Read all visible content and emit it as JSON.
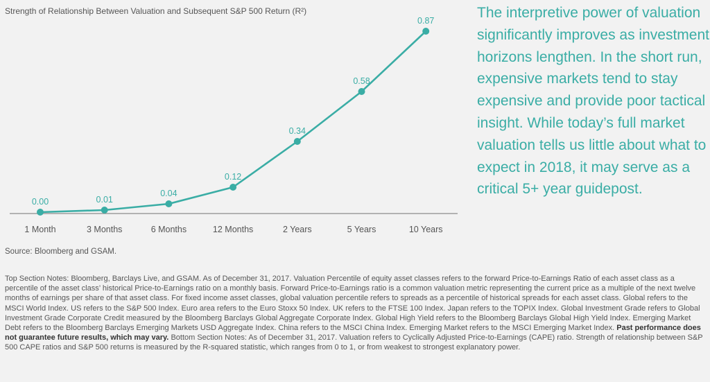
{
  "chart_data": {
    "type": "line",
    "title": "Strength of Relationship Between Valuation and Subsequent S&P 500 Return (R²)",
    "categories": [
      "1 Month",
      "3 Months",
      "6 Months",
      "12 Months",
      "2 Years",
      "5 Years",
      "10 Years"
    ],
    "series": [
      {
        "name": "R-squared",
        "values": [
          0.0,
          0.01,
          0.04,
          0.12,
          0.34,
          0.58,
          0.87
        ]
      }
    ],
    "data_labels": [
      "0.00",
      "0.01",
      "0.04",
      "0.12",
      "0.34",
      "0.58",
      "0.87"
    ],
    "ylim": [
      0,
      0.87
    ],
    "xlabel": "",
    "ylabel": "",
    "grid": false,
    "legend": "none",
    "color": "#3aada5",
    "axis_color": "#8c8c8c"
  },
  "callout": {
    "text": "The interpretive power of valuation significantly improves as investment horizons lengthen. In the short run, expensive markets tend to stay expensive and provide poor tactical insight. While today’s full market valuation tells us little about what to expect in 2018, it may serve as a critical 5+ year guidepost."
  },
  "source": "Source: Bloomberg and GSAM.",
  "notes": {
    "top_a": "Top Section Notes: Bloomberg, Barclays Live, and GSAM. As of December 31, 2017. Valuation Percentile of equity asset classes refers to the forward Price-to-Earnings Ratio of each asset class as a percentile of the asset class’ historical Price-to-Earnings ratio on a monthly basis. Forward Price-to-Earnings ratio is a common valuation metric representing the current price as a multiple of the next twelve months of earnings per share of that asset class. For fixed income asset classes, global valuation percentile refers to spreads as a percentile of historical spreads for each asset class. Global refers to the MSCI World Index. US refers to the S&P 500 Index. Euro area refers to the Euro Stoxx 50 Index. UK refers to the FTSE 100 Index. Japan refers to the TOPIX Index. Global Investment Grade refers to Global Investment Grade Corporate Credit measured by the Bloomberg Barclays Global Aggregate Corporate Index. Global High Yield refers to the Bloomberg Barclays Global High Yield Index. Emerging Market Debt refers to the Bloomberg Barclays Emerging Markets USD Aggregate Index. China refers to the MSCI China Index. Emerging Market refers to the MSCI Emerging Market Index.",
    "disclaimer": "Past performance does not guarantee future results, which may vary.",
    "bottom": "Bottom Section Notes: As of December 31, 2017. Valuation refers to Cyclically Adjusted Price-to-Earnings (CAPE) ratio. Strength of relationship between S&P 500 CAPE ratios and S&P 500 returns is measured by the R-squared statistic, which ranges from 0 to 1, or from weakest to strongest explanatory power."
  }
}
